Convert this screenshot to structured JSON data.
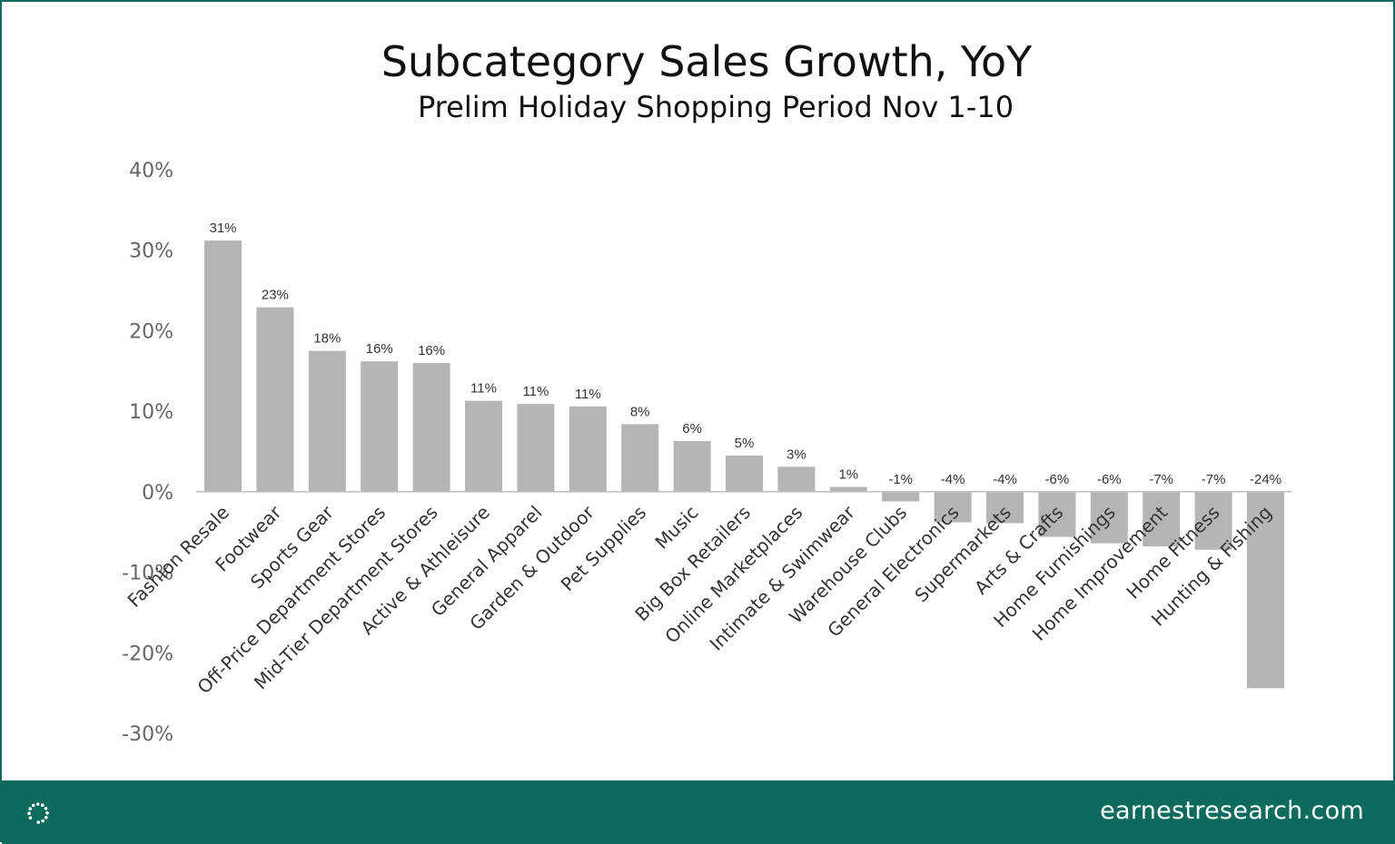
{
  "chart_data": {
    "type": "bar",
    "title": "Subcategory Sales Growth, YoY",
    "subtitle": "Prelim Holiday Shopping Period Nov 1-10",
    "xlabel": "",
    "ylabel": "",
    "ylim": [
      -30,
      40
    ],
    "yticks": [
      40,
      30,
      20,
      10,
      0,
      -10,
      -20,
      -30
    ],
    "ytick_labels": [
      "40%",
      "30%",
      "20%",
      "10%",
      "0%",
      "-10%",
      "-20%",
      "-30%"
    ],
    "categories": [
      "Fashion Resale",
      "Footwear",
      "Sports Gear",
      "Off-Price Department Stores",
      "Mid-Tier Department Stores",
      "Active & Athleisure",
      "General Apparel",
      "Garden & Outdoor",
      "Pet Supplies",
      "Music",
      "Big Box Retailers",
      "Online Marketplaces",
      "Intimate & Swimwear",
      "Warehouse Clubs",
      "General Electronics",
      "Supermarkets",
      "Arts & Crafts",
      "Home Furnishings",
      "Home Improvement",
      "Home Fitness",
      "Hunting & Fishing"
    ],
    "values": [
      31.2,
      22.9,
      17.5,
      16.2,
      16.0,
      11.3,
      10.9,
      10.6,
      8.4,
      6.3,
      4.5,
      3.1,
      0.6,
      -1.2,
      -3.8,
      -3.9,
      -5.6,
      -6.4,
      -6.8,
      -7.2,
      -24.4
    ],
    "data_labels": [
      "31%",
      "23%",
      "18%",
      "16%",
      "16%",
      "11%",
      "11%",
      "11%",
      "8%",
      "6%",
      "5%",
      "3%",
      "1%",
      "-1%",
      "-4%",
      "-4%",
      "-6%",
      "-6%",
      "-7%",
      "-7%",
      "-24%"
    ],
    "bar_color": "#b5b5b5",
    "grid": false,
    "legend": "none"
  },
  "footer": {
    "url": "earnestresearch.com",
    "logo_icon": "earnest-dots-logo-icon",
    "background": "#0d6b5e"
  }
}
